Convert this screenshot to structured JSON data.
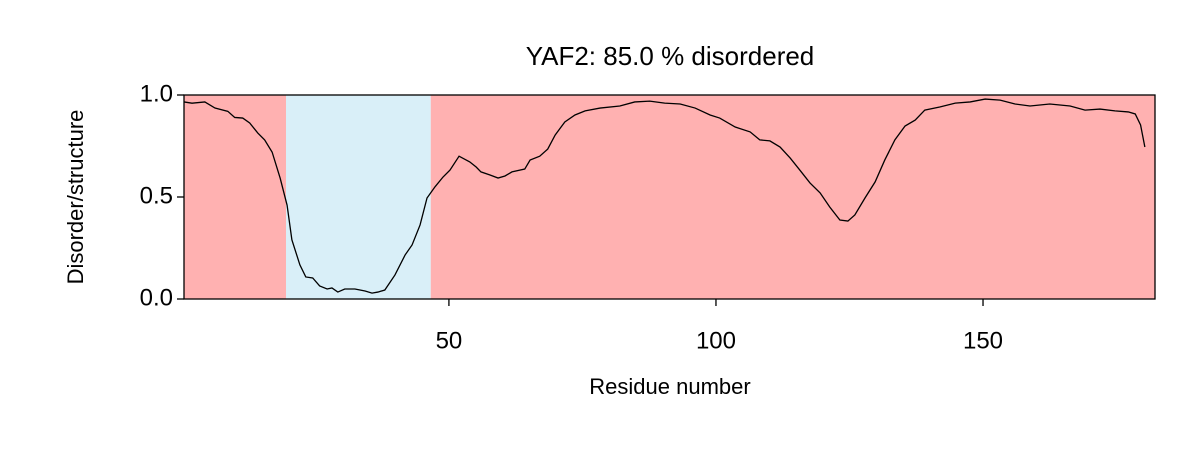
{
  "chart_data": {
    "type": "line",
    "title": "YAF2: 85.0 % disordered",
    "x_label": "Residue number",
    "y_label": "Disorder/structure",
    "xlim": [
      0.4,
      182.2
    ],
    "ylim": [
      0,
      1
    ],
    "xticks": [
      50,
      100,
      150
    ],
    "yticks": [
      {
        "value": 0,
        "label": "0.0"
      },
      {
        "value": 0.5,
        "label": "0.5"
      },
      {
        "value": 1,
        "label": "1.0"
      }
    ],
    "regions": [
      {
        "start": 0.4,
        "end": 19.5,
        "color": "#ffb1b1"
      },
      {
        "start": 19.5,
        "end": 46.6,
        "color": "#d9eff8"
      },
      {
        "start": 46.6,
        "end": 182.2,
        "color": "#ffb1b1"
      }
    ],
    "color": "#000000",
    "x": [
      0.4,
      1.9,
      4.3,
      6.2,
      8.6,
      9.9,
      11.4,
      12.7,
      14.2,
      15.5,
      16.9,
      18.4,
      19.7,
      20.6,
      22.1,
      23.2,
      24.5,
      25.8,
      27.2,
      28.1,
      29.2,
      30.5,
      32.4,
      34.3,
      35.6,
      36.7,
      38.0,
      39.9,
      41.8,
      43.1,
      44.6,
      45.9,
      47.4,
      48.9,
      50.2,
      51.9,
      53.9,
      55.1,
      56.0,
      57.7,
      59.2,
      60.5,
      61.8,
      64.2,
      65.2,
      67.0,
      68.5,
      69.9,
      71.7,
      73.6,
      75.5,
      78.3,
      82.0,
      84.8,
      87.6,
      90.4,
      93.3,
      96.1,
      98.9,
      100.7,
      103.6,
      106.4,
      108.2,
      110.1,
      112.0,
      113.9,
      115.7,
      117.6,
      119.5,
      121.3,
      123.2,
      124.7,
      126.0,
      127.9,
      129.8,
      131.6,
      133.5,
      135.4,
      137.3,
      139.1,
      141.9,
      144.8,
      147.6,
      150.4,
      153.2,
      156.0,
      158.8,
      162.5,
      166.3,
      169.1,
      171.9,
      174.7,
      177.2,
      178.5,
      179.5,
      180.3
    ],
    "values": [
      0.966,
      0.96,
      0.966,
      0.936,
      0.92,
      0.89,
      0.887,
      0.863,
      0.814,
      0.78,
      0.72,
      0.593,
      0.46,
      0.29,
      0.167,
      0.108,
      0.103,
      0.064,
      0.049,
      0.054,
      0.034,
      0.049,
      0.049,
      0.039,
      0.029,
      0.034,
      0.044,
      0.118,
      0.216,
      0.265,
      0.363,
      0.495,
      0.55,
      0.598,
      0.632,
      0.7,
      0.672,
      0.647,
      0.623,
      0.608,
      0.593,
      0.603,
      0.623,
      0.637,
      0.681,
      0.7,
      0.735,
      0.804,
      0.868,
      0.902,
      0.922,
      0.936,
      0.946,
      0.966,
      0.97,
      0.96,
      0.956,
      0.936,
      0.902,
      0.887,
      0.843,
      0.819,
      0.78,
      0.775,
      0.745,
      0.691,
      0.632,
      0.569,
      0.52,
      0.451,
      0.387,
      0.382,
      0.412,
      0.495,
      0.574,
      0.681,
      0.78,
      0.848,
      0.877,
      0.926,
      0.941,
      0.96,
      0.966,
      0.98,
      0.975,
      0.956,
      0.946,
      0.956,
      0.946,
      0.926,
      0.931,
      0.922,
      0.917,
      0.907,
      0.853,
      0.745
    ]
  }
}
